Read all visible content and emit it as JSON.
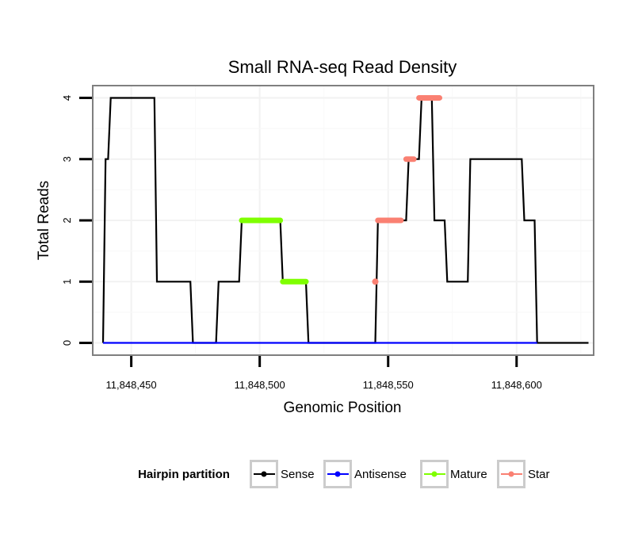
{
  "chart_data": {
    "type": "line",
    "title": "Small RNA-seq Read Density",
    "xlabel": "Genomic Position",
    "ylabel": "Total Reads",
    "xlim": [
      11848435,
      11848630
    ],
    "ylim": [
      -0.2,
      4.2
    ],
    "x_ticks": [
      11848450,
      11848500,
      11848550,
      11848600
    ],
    "x_tick_labels": [
      "11,848,450",
      "11,848,500",
      "11,848,550",
      "11,848,600"
    ],
    "y_ticks": [
      0,
      1,
      2,
      3,
      4
    ],
    "y_tick_labels": [
      "0",
      "1",
      "2",
      "3",
      "4"
    ],
    "grid": true,
    "legend": {
      "title": "Hairpin partition",
      "position": "bottom",
      "entries": [
        {
          "name": "Sense",
          "color": "#000000"
        },
        {
          "name": "Antisense",
          "color": "#0000ff"
        },
        {
          "name": "Mature",
          "color": "#7fff00"
        },
        {
          "name": "Star",
          "color": "#fa8072"
        }
      ]
    },
    "series": [
      {
        "name": "Sense",
        "color": "#000000",
        "x": [
          11848439,
          11848440,
          11848441,
          11848442,
          11848459,
          11848460,
          11848473,
          11848474,
          11848483,
          11848484,
          11848492,
          11848493,
          11848508,
          11848509,
          11848518,
          11848519,
          11848545,
          11848546,
          11848557,
          11848558,
          11848562,
          11848563,
          11848567,
          11848568,
          11848572,
          11848573,
          11848581,
          11848582,
          11848602,
          11848603,
          11848607,
          11848608,
          11848628
        ],
        "values": [
          0,
          3,
          3,
          4,
          4,
          1,
          1,
          0,
          0,
          1,
          1,
          2,
          2,
          1,
          1,
          0,
          0,
          2,
          2,
          3,
          3,
          4,
          4,
          2,
          2,
          1,
          1,
          3,
          3,
          2,
          2,
          0,
          0
        ]
      },
      {
        "name": "Antisense",
        "color": "#0000ff",
        "x": [
          11848439,
          11848608
        ],
        "values": [
          0,
          0
        ]
      },
      {
        "name": "Mature",
        "color": "#7fff00",
        "segments": [
          {
            "x": [
              11848493,
              11848508
            ],
            "value": 2
          },
          {
            "x": [
              11848509,
              11848518
            ],
            "value": 1
          }
        ]
      },
      {
        "name": "Star",
        "color": "#fa8072",
        "segments": [
          {
            "x": [
              11848545,
              11848545
            ],
            "value": 1
          },
          {
            "x": [
              11848546,
              11848555
            ],
            "value": 2
          },
          {
            "x": [
              11848557,
              11848560
            ],
            "value": 3
          },
          {
            "x": [
              11848562,
              11848570
            ],
            "value": 4
          }
        ]
      }
    ]
  }
}
